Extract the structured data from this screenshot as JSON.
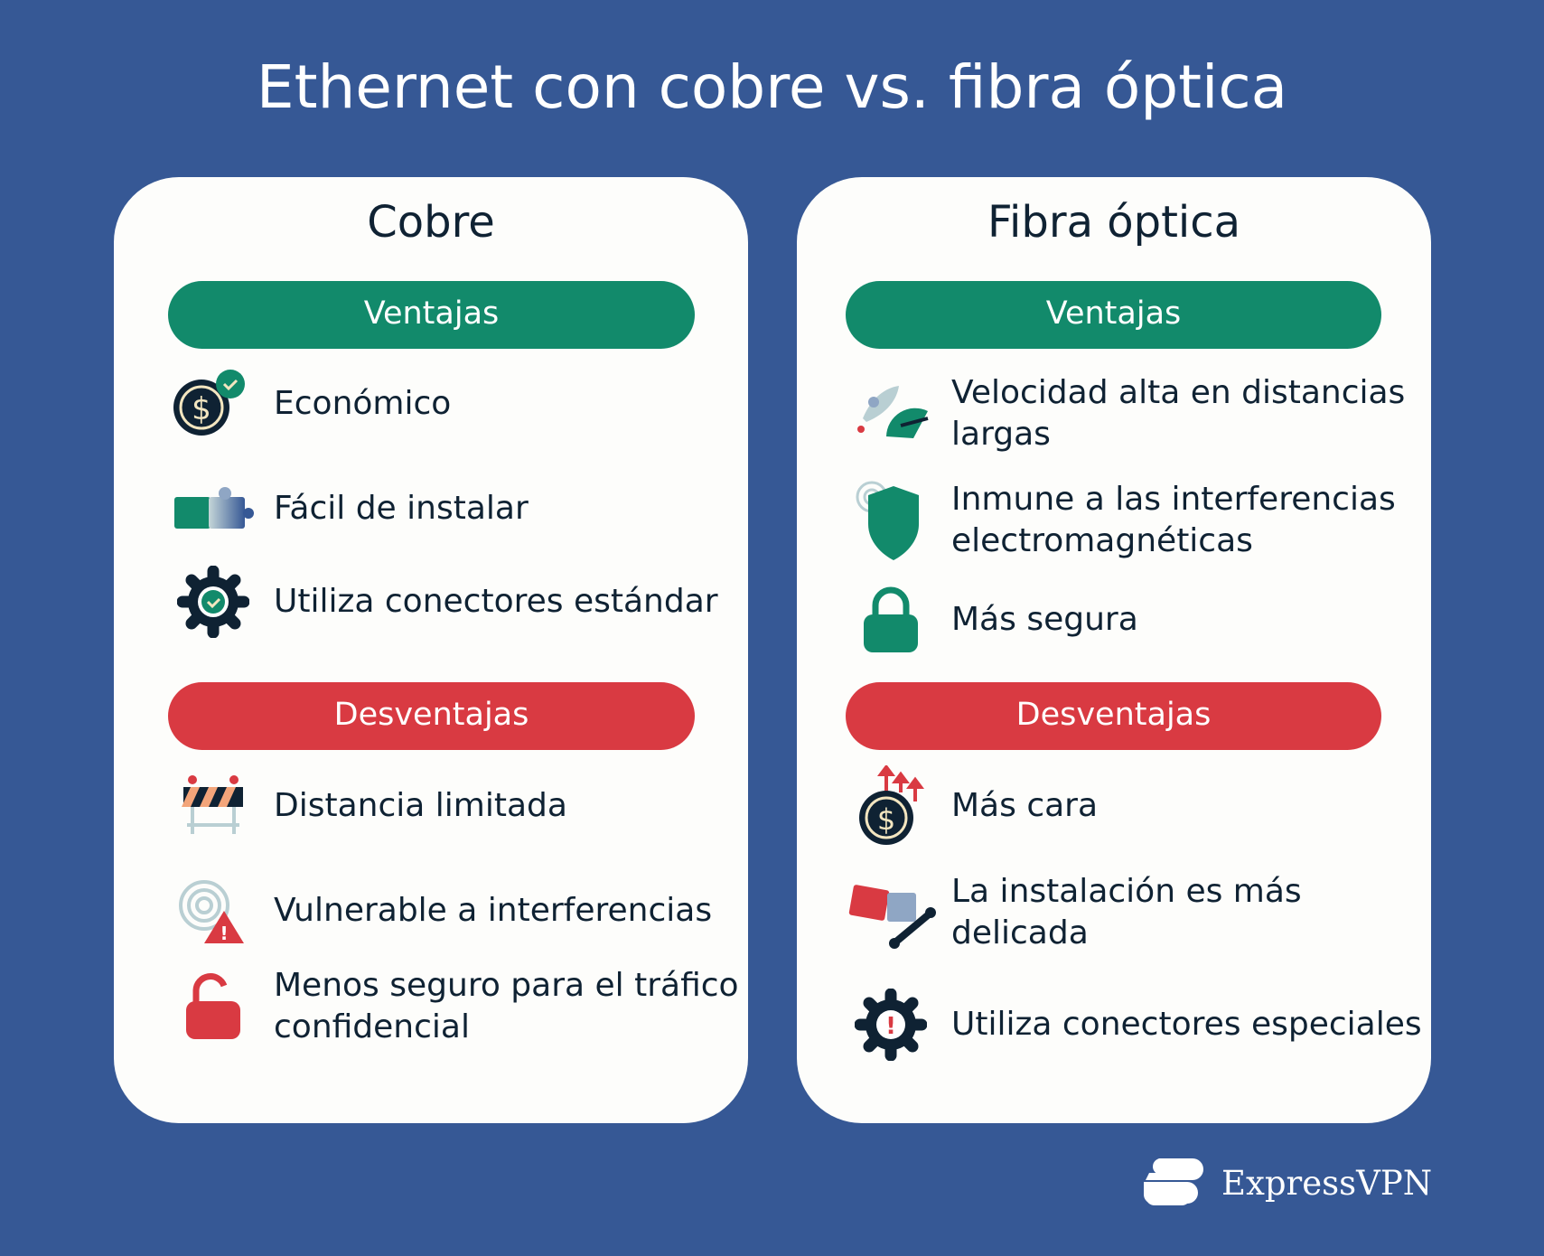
{
  "title": "Ethernet con cobre vs. fibra óptica",
  "colors": {
    "background": "#365895",
    "advantages": "#128a6b",
    "disadvantages": "#d93a42",
    "text": "#0f2233"
  },
  "cards": [
    {
      "heading": "Cobre",
      "advantages_label": "Ventajas",
      "disadvantages_label": "Desventajas",
      "advantages": [
        {
          "icon": "dollar-check-icon",
          "text": "Económico"
        },
        {
          "icon": "puzzle-icon",
          "text": "Fácil de instalar"
        },
        {
          "icon": "gear-check-icon",
          "text": "Utiliza conectores estándar"
        }
      ],
      "disadvantages": [
        {
          "icon": "barrier-icon",
          "text": "Distancia limitada"
        },
        {
          "icon": "interference-warning-icon",
          "text": "Vulnerable a interferencias"
        },
        {
          "icon": "unlocked-padlock-icon",
          "text": "Menos seguro para el tráfico confidencial"
        }
      ]
    },
    {
      "heading": "Fibra óptica",
      "advantages_label": "Ventajas",
      "disadvantages_label": "Desventajas",
      "advantages": [
        {
          "icon": "rocket-speedometer-icon",
          "text": "Velocidad alta en distancias largas"
        },
        {
          "icon": "shield-icon",
          "text": "Inmune a las interferencias electromagnéticas"
        },
        {
          "icon": "padlock-icon",
          "text": "Más segura"
        }
      ],
      "disadvantages": [
        {
          "icon": "dollar-up-arrows-icon",
          "text": "Más cara"
        },
        {
          "icon": "puzzle-wrench-icon",
          "text": "La instalación es más delicada"
        },
        {
          "icon": "gear-alert-icon",
          "text": "Utiliza conectores especiales"
        }
      ]
    }
  ],
  "brand": "ExpressVPN"
}
